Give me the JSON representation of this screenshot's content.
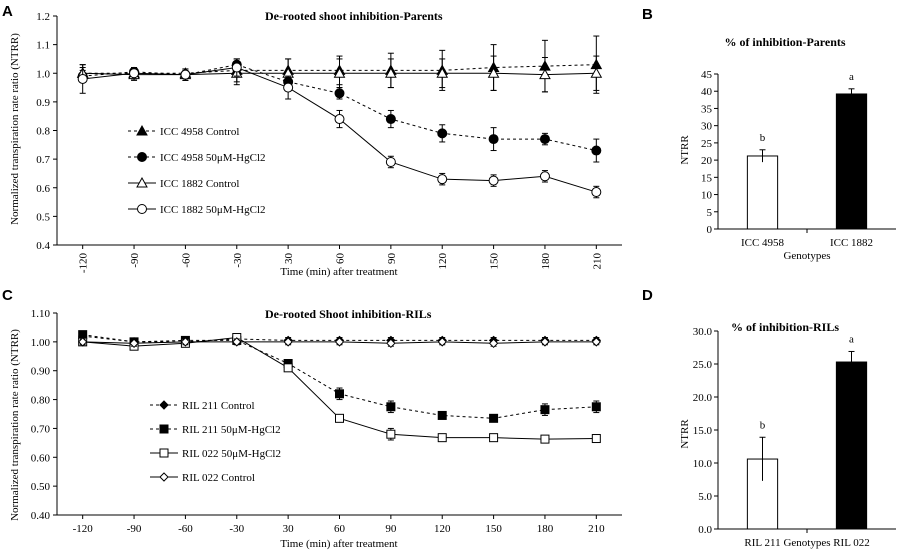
{
  "figure": {
    "panel_letters": [
      "A",
      "B",
      "C",
      "D"
    ]
  },
  "chart_data": [
    {
      "panel": "A",
      "type": "line",
      "title": "De-rooted shoot inhibition-Parents",
      "xlabel": "Time  (min)  after treatment",
      "ylabel": "Normalized  transpiration   rate ratio  (NTRR)",
      "categories": [
        "-120",
        "-90",
        "-60",
        "-30",
        "30",
        "60",
        "90",
        "120",
        "150",
        "180",
        "210"
      ],
      "categories_rotated": true,
      "ylim": [
        0.4,
        1.2
      ],
      "ytick_step": 0.1,
      "ytick_labels": [
        "0.4",
        "0.5",
        "0.6",
        "0.7",
        "0.8",
        "0.9",
        "1.0",
        "1.1",
        "1.2"
      ],
      "legend_position": "left-center",
      "series": [
        {
          "name": "ICC 4958 Control",
          "marker": "triangle-filled",
          "dashed": true,
          "values": [
            1.0,
            1.0,
            1.0,
            1.01,
            1.01,
            1.01,
            1.01,
            1.01,
            1.02,
            1.025,
            1.03
          ],
          "errors": [
            0.02,
            0.02,
            0.01,
            0.04,
            0.04,
            0.05,
            0.06,
            0.07,
            0.08,
            0.09,
            0.1
          ]
        },
        {
          "name": "ICC 4958 50μM-HgCl2",
          "marker": "circle-filled",
          "dashed": true,
          "values": [
            0.99,
            1.005,
            0.995,
            1.03,
            0.97,
            0.93,
            0.84,
            0.79,
            0.77,
            0.77,
            0.73
          ],
          "errors": [
            0.02,
            0.01,
            0.01,
            0.02,
            0.02,
            0.02,
            0.03,
            0.03,
            0.04,
            0.02,
            0.04
          ]
        },
        {
          "name": "ICC 1882 Control",
          "marker": "triangle-open",
          "dashed": false,
          "values": [
            1.0,
            0.995,
            0.995,
            1.0,
            1.0,
            1.0,
            1.0,
            1.0,
            1.0,
            0.995,
            1.0
          ],
          "errors": [
            0.03,
            0.02,
            0.02,
            0.04,
            0.05,
            0.05,
            0.05,
            0.05,
            0.06,
            0.06,
            0.06
          ]
        },
        {
          "name": "ICC 1882 50μM-HgCl2",
          "marker": "circle-open",
          "dashed": false,
          "values": [
            0.98,
            1.0,
            0.995,
            1.02,
            0.95,
            0.84,
            0.69,
            0.63,
            0.625,
            0.64,
            0.585
          ],
          "errors": [
            0.05,
            0.02,
            0.02,
            0.03,
            0.04,
            0.03,
            0.02,
            0.02,
            0.02,
            0.02,
            0.02
          ]
        }
      ]
    },
    {
      "panel": "B",
      "type": "bar",
      "title": "% of inhibition-Parents",
      "xlabel": "Genotypes",
      "ylabel": "NTRR",
      "categories": [
        "ICC 4958",
        "ICC 1882"
      ],
      "values": [
        21.2,
        39.2
      ],
      "errors": [
        1.8,
        1.5
      ],
      "fills": [
        "#ffffff",
        "#000000"
      ],
      "significance": [
        "b",
        "a"
      ],
      "ylim": [
        0,
        45
      ],
      "ytick_step": 5,
      "ytick_labels": [
        "0",
        "5",
        "10",
        "15",
        "20",
        "25",
        "30",
        "35",
        "40",
        "45"
      ]
    },
    {
      "panel": "C",
      "type": "line",
      "title": "De-rooted Shoot inhibition-RILs",
      "xlabel": "Time  (min)  after treatment",
      "ylabel": "Normalized  transpiration  rate ratio (NTRR)",
      "categories": [
        "-120",
        "-90",
        "-60",
        "-30",
        "30",
        "60",
        "90",
        "120",
        "150",
        "180",
        "210"
      ],
      "categories_rotated": false,
      "ylim": [
        0.4,
        1.1
      ],
      "ytick_step": 0.1,
      "ytick_labels": [
        "0.40",
        "0.50",
        "0.60",
        "0.70",
        "0.80",
        "0.90",
        "1.00",
        "1.10"
      ],
      "legend_position": "left-center",
      "series": [
        {
          "name": "RIL 211 Control",
          "marker": "diamond-filled",
          "dashed": true,
          "values": [
            1.02,
            1.0,
            1.0,
            1.01,
            1.005,
            1.005,
            1.005,
            1.005,
            1.005,
            1.005,
            1.005
          ],
          "errors": [
            0.01,
            0.01,
            0.01,
            0.01,
            0.01,
            0.01,
            0.01,
            0.01,
            0.01,
            0.01,
            0.01
          ]
        },
        {
          "name": "RIL 211 50μM-HgCl2",
          "marker": "square-filled",
          "dashed": true,
          "values": [
            1.025,
            1.0,
            1.005,
            1.005,
            0.925,
            0.82,
            0.775,
            0.745,
            0.735,
            0.765,
            0.775
          ],
          "errors": [
            0.01,
            0.01,
            0.01,
            0.01,
            0.01,
            0.02,
            0.02,
            0.01,
            0.01,
            0.02,
            0.02
          ]
        },
        {
          "name": "RIL 022 50μM-HgCl2",
          "marker": "square-open",
          "dashed": false,
          "values": [
            1.0,
            0.985,
            0.995,
            1.015,
            0.91,
            0.735,
            0.68,
            0.668,
            0.668,
            0.663,
            0.665
          ],
          "errors": [
            0.01,
            0.01,
            0.01,
            0.01,
            0.01,
            0.01,
            0.02,
            0.01,
            0.01,
            0.01,
            0.01
          ]
        },
        {
          "name": "RIL 022 Control",
          "marker": "diamond-open",
          "dashed": false,
          "values": [
            1.0,
            0.995,
            1.0,
            1.0,
            1.0,
            1.0,
            0.995,
            1.0,
            0.995,
            1.0,
            1.0
          ],
          "errors": [
            0.01,
            0.01,
            0.01,
            0.01,
            0.01,
            0.01,
            0.01,
            0.01,
            0.01,
            0.01,
            0.01
          ]
        }
      ]
    },
    {
      "panel": "D",
      "type": "bar",
      "title": "% of inhibition-RILs",
      "xlabel": "Genotypes",
      "ylabel": "NTRR",
      "categories": [
        "RIL 211",
        "RIL 022"
      ],
      "values": [
        10.6,
        25.3
      ],
      "errors": [
        3.3,
        1.6
      ],
      "fills": [
        "#ffffff",
        "#000000"
      ],
      "significance": [
        "b",
        "a"
      ],
      "ylim": [
        0,
        30
      ],
      "ytick_step": 5,
      "ytick_labels": [
        "0.0",
        "5.0",
        "10.0",
        "15.0",
        "20.0",
        "25.0",
        "30.0"
      ]
    }
  ]
}
